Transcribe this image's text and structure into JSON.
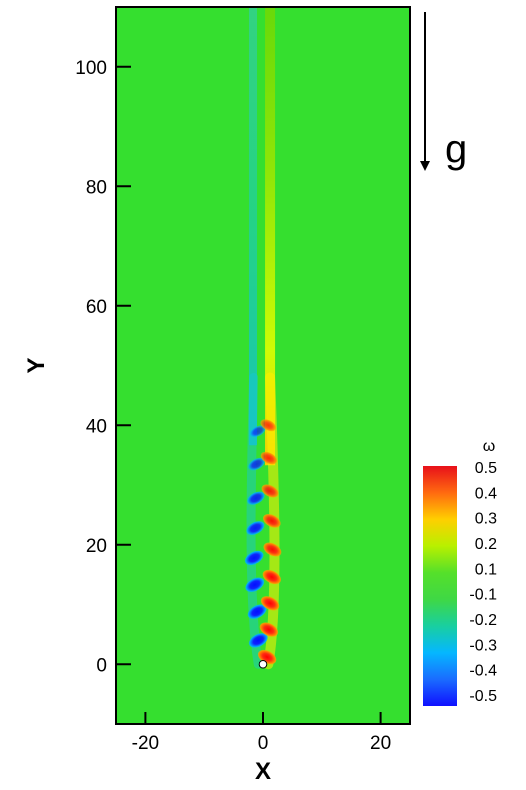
{
  "chart_data": {
    "type": "heatmap",
    "xlabel": "X",
    "ylabel": "Y",
    "xlim": [
      -25,
      25
    ],
    "ylim": [
      -10,
      110
    ],
    "x_ticks": [
      -20,
      0,
      20
    ],
    "y_ticks": [
      0,
      20,
      40,
      60,
      80,
      100
    ],
    "x_tick_labels": [
      "-20",
      "0",
      "20"
    ],
    "y_tick_labels": [
      "0",
      "20",
      "40",
      "60",
      "80",
      "100"
    ],
    "colorbar": {
      "title": "ω",
      "range": [
        -0.5,
        0.5
      ],
      "levels": [
        "0.5",
        "0.4",
        "0.3",
        "0.2",
        "0.1",
        "-0.1",
        "-0.2",
        "-0.3",
        "-0.4",
        "-0.5"
      ],
      "colors": [
        "#e8101a",
        "#ff6a10",
        "#ffcf00",
        "#b8f000",
        "#55e02a",
        "#3fd845",
        "#19cfa0",
        "#05b7ff",
        "#1a6cff",
        "#1010ff"
      ]
    },
    "gravity": {
      "label": "g",
      "direction": "down"
    },
    "background_color": "#35df2f",
    "vortex_street": {
      "positive_color": "#ff1212",
      "negative_color": "#1010ff",
      "positive_vortices": [
        {
          "x": 0.7,
          "y": 1.2,
          "strength": 0.5
        },
        {
          "x": 1.0,
          "y": 5.8,
          "strength": 0.5
        },
        {
          "x": 1.2,
          "y": 10.2,
          "strength": 0.5
        },
        {
          "x": 1.5,
          "y": 14.6,
          "strength": 0.5
        },
        {
          "x": 1.6,
          "y": 19.2,
          "strength": 0.45
        },
        {
          "x": 1.5,
          "y": 24.0,
          "strength": 0.42
        },
        {
          "x": 1.2,
          "y": 29.0,
          "strength": 0.35
        },
        {
          "x": 1.0,
          "y": 34.5,
          "strength": 0.28
        },
        {
          "x": 0.9,
          "y": 40.0,
          "strength": 0.2
        }
      ],
      "negative_vortices": [
        {
          "x": -0.8,
          "y": 4.0,
          "strength": -0.5
        },
        {
          "x": -1.0,
          "y": 8.8,
          "strength": -0.5
        },
        {
          "x": -1.4,
          "y": 13.3,
          "strength": -0.5
        },
        {
          "x": -1.5,
          "y": 17.8,
          "strength": -0.48
        },
        {
          "x": -1.3,
          "y": 22.8,
          "strength": -0.42
        },
        {
          "x": -1.2,
          "y": 27.8,
          "strength": -0.35
        },
        {
          "x": -1.1,
          "y": 33.5,
          "strength": -0.25
        },
        {
          "x": -0.9,
          "y": 39.0,
          "strength": -0.15
        }
      ]
    },
    "wake": {
      "positive_x": 1.2,
      "negative_x": -1.7,
      "start_y": 40,
      "end_y": 110
    }
  }
}
